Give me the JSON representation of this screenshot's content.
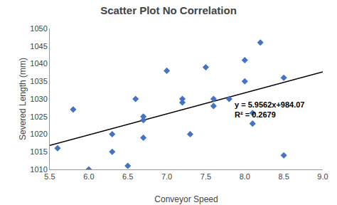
{
  "chart_data": {
    "type": "scatter",
    "title": "Scatter Plot No Correlation",
    "x_label": "Conveyor Speed",
    "y_label": "Severed Length (mm)",
    "series": [
      {
        "type": "scatter",
        "color": "#4472C4",
        "marker": "diamond",
        "x": [
          5.6,
          5.8,
          6.0,
          6.3,
          6.3,
          6.5,
          6.6,
          6.7,
          6.7,
          6.7,
          7.0,
          7.2,
          7.2,
          7.3,
          7.5,
          7.6,
          7.6,
          7.8,
          8.0,
          8.0,
          8.1,
          8.1,
          8.2,
          8.5,
          8.5
        ],
        "values": [
          1016,
          1027,
          1010,
          1015,
          1020,
          1011,
          1030,
          1024,
          1025,
          1019,
          1038,
          1029,
          1030,
          1020,
          1039,
          1028,
          1030,
          1030,
          1035,
          1041,
          1026,
          1023,
          1046,
          1036,
          1014
        ]
      },
      {
        "type": "line",
        "color": "black",
        "line_style": "solid",
        "x": [
          5.5,
          9.0
        ],
        "values": [
          1016.8291,
          1037.6758
        ]
      }
    ],
    "annotations": [
      {
        "text": "y = 5.9562x+984.07\nR² = 0.2679",
        "x": 7.85,
        "y": 1027
      }
    ],
    "xlim": [
      5.5,
      9.0
    ],
    "ylim": [
      1010,
      1050
    ],
    "xticks": [
      5.5,
      {
        "value": 6,
        "label": "6.0"
      },
      6.5,
      {
        "value": 7,
        "label": "7.0"
      },
      7.5,
      {
        "value": 8,
        "label": "8.0"
      },
      8.5,
      {
        "value": 9,
        "label": "9.0"
      }
    ],
    "yticks": [
      1010,
      1015,
      1020,
      1025,
      1030,
      1035,
      1040,
      1045,
      1050
    ],
    "grid": false
  }
}
